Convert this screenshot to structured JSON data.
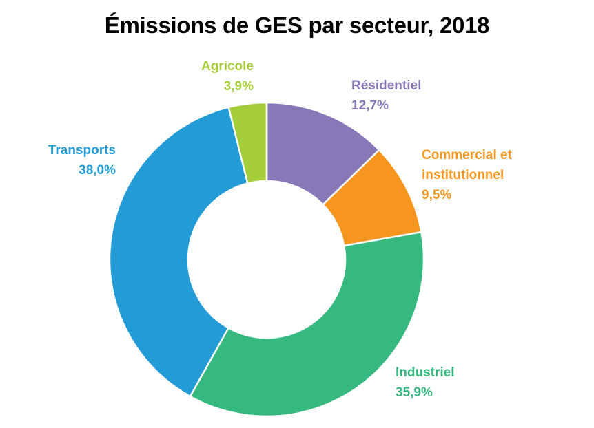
{
  "chart_data": {
    "type": "pie",
    "donut": true,
    "title": "Émissions de GES par secteur, 2018",
    "categories": [
      "Résidentiel",
      "Commercial et institutionnel",
      "Industriel",
      "Transports",
      "Agricole"
    ],
    "values": [
      12.7,
      9.5,
      35.9,
      38.0,
      3.9
    ],
    "value_labels": [
      "12,7%",
      "9,5%",
      "35,9%",
      "38,0%",
      "3,9%"
    ],
    "unit": "%",
    "colors": [
      "#8878b8",
      "#f7961e",
      "#36b97e",
      "#229bd6",
      "#a5cd3a"
    ],
    "legend": "none"
  }
}
